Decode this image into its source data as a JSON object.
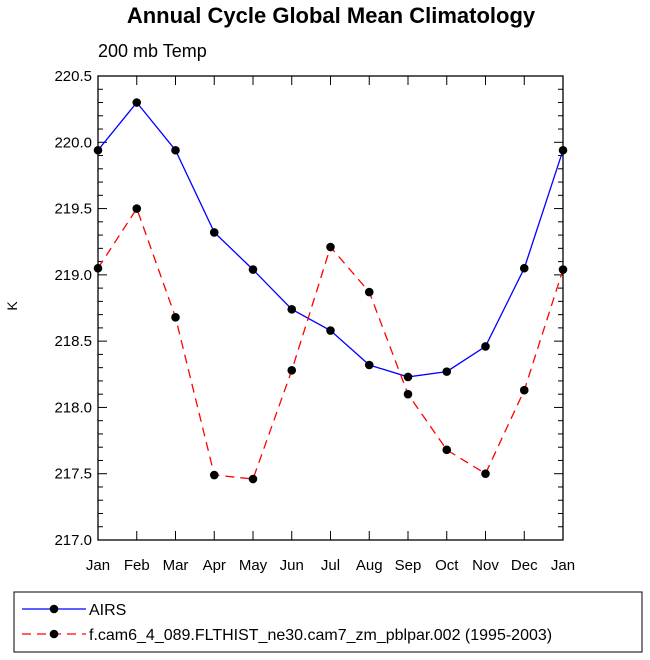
{
  "chart_data": {
    "type": "line",
    "title": "Annual Cycle Global Mean Climatology",
    "subtitle": "200 mb Temp",
    "xlabel": "",
    "ylabel": "K",
    "categories": [
      "Jan",
      "Feb",
      "Mar",
      "Apr",
      "May",
      "Jun",
      "Jul",
      "Aug",
      "Sep",
      "Oct",
      "Nov",
      "Dec",
      "Jan"
    ],
    "ylim": [
      217.0,
      220.5
    ],
    "yticks": [
      217.0,
      217.5,
      218.0,
      218.5,
      219.0,
      219.5,
      220.0,
      220.5
    ],
    "ytick_labels": [
      "217.0",
      "217.5",
      "218.0",
      "218.5",
      "219.0",
      "219.5",
      "220.0",
      "220.5"
    ],
    "grid": false,
    "legend_position": "bottom",
    "series": [
      {
        "name": "AIRS",
        "color": "#0000ff",
        "dash": "solid",
        "values": [
          219.94,
          220.3,
          219.94,
          219.32,
          219.04,
          218.74,
          218.58,
          218.32,
          218.23,
          218.27,
          218.46,
          219.05,
          219.94
        ]
      },
      {
        "name": "f.cam6_4_089.FLTHIST_ne30.cam7_zm_pblpar.002 (1995-2003)",
        "color": "#ff0000",
        "dash": "dashed",
        "values": [
          219.05,
          219.5,
          218.68,
          217.49,
          217.46,
          218.28,
          219.21,
          218.87,
          218.1,
          217.68,
          217.5,
          218.13,
          219.04
        ]
      }
    ]
  }
}
